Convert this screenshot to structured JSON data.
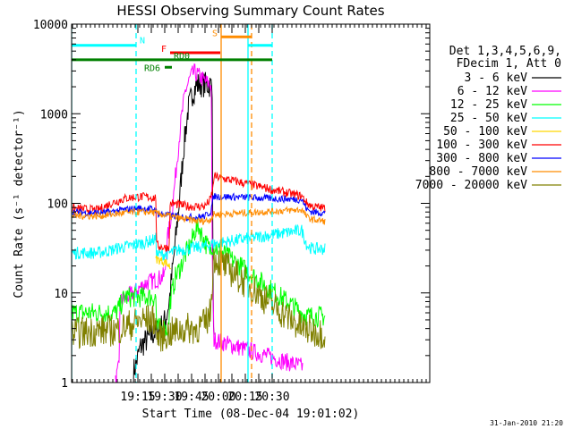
{
  "chart_data": {
    "type": "line",
    "title": "HESSI Observing Summary Count Rates",
    "xlabel": "Start Time (08-Dec-04 19:01:02)",
    "ylabel": "Count Rate (s⁻¹ detector⁻¹)",
    "ylog": true,
    "xlim": [
      1081,
      1481
    ],
    "ylim": [
      1,
      10000
    ],
    "x_ticks": [
      {
        "t": 1155,
        "label": "19:15"
      },
      {
        "t": 1170,
        "label": ""
      },
      {
        "t": 1185,
        "label": "19:30"
      },
      {
        "t": 1200,
        "label": ""
      },
      {
        "t": 1215,
        "label": "19:45"
      },
      {
        "t": 1230,
        "label": ""
      },
      {
        "t": 1245,
        "label": "20:00"
      },
      {
        "t": 1260,
        "label": ""
      },
      {
        "t": 1275,
        "label": "20:15"
      },
      {
        "t": 1290,
        "label": ""
      },
      {
        "t": 1305,
        "label": "20:30"
      }
    ],
    "y_ticks": [
      "1",
      "10",
      "100",
      "1000",
      "10000"
    ],
    "legend": {
      "placement": "right",
      "header": [
        "Det 1,3,4,5,6,9,",
        "FDecim 1, Att 0"
      ],
      "entries": [
        {
          "label": "3 - 6 keV",
          "color": "#000000"
        },
        {
          "label": "6 - 12 keV",
          "color": "#ff00ff"
        },
        {
          "label": "12 - 25 keV",
          "color": "#00ff00"
        },
        {
          "label": "25 - 50 keV",
          "color": "#00ffff"
        },
        {
          "label": "50 - 100 keV",
          "color": "#ffd700"
        },
        {
          "label": "100 - 300 keV",
          "color": "#ff0000"
        },
        {
          "label": "300 - 800 keV",
          "color": "#0000ff"
        },
        {
          "label": "800 - 7000 keV",
          "color": "#ff8c00"
        },
        {
          "label": "7000 - 20000 keV",
          "color": "#808000"
        }
      ]
    },
    "flags": [
      {
        "label": "N",
        "color": "#00ffff",
        "y": 5800,
        "segments": [
          [
            1081,
            1153
          ],
          [
            1278,
            1305
          ]
        ]
      },
      {
        "label": "S",
        "color": "#ff8c00",
        "y": 7200,
        "segments": [
          [
            1248,
            1282
          ]
        ]
      },
      {
        "label": "F",
        "color": "#ff0000",
        "y": 4800,
        "segments": [
          [
            1191,
            1247
          ]
        ]
      },
      {
        "label": "RD0",
        "color": "#008000",
        "y": 4000,
        "segments": [
          [
            1081,
            1305
          ]
        ]
      },
      {
        "label": "RD6",
        "color": "#008000",
        "y": 3300,
        "segments": [
          [
            1185,
            1193
          ]
        ]
      }
    ],
    "markers": [
      {
        "t": 1081,
        "color": "#00ffff",
        "style": "solid"
      },
      {
        "t": 1153,
        "color": "#00ffff",
        "style": "dashed"
      },
      {
        "t": 1248,
        "color": "#ff8c00",
        "style": "solid"
      },
      {
        "t": 1278,
        "color": "#00ffff",
        "style": "solid"
      },
      {
        "t": 1282,
        "color": "#ff8c00",
        "style": "dashed"
      },
      {
        "t": 1305,
        "color": "#00ffff",
        "style": "dashed"
      }
    ],
    "series": [
      {
        "name": "3 - 6 keV",
        "color": "#000000",
        "noise": 0.15,
        "points": [
          [
            1150,
            1.3
          ],
          [
            1152,
            1.5
          ],
          [
            1158,
            2.5
          ],
          [
            1165,
            3
          ],
          [
            1172,
            3.5
          ],
          [
            1180,
            4
          ],
          [
            1186,
            5
          ],
          [
            1190,
            8
          ],
          [
            1196,
            30
          ],
          [
            1201,
            100
          ],
          [
            1206,
            400
          ],
          [
            1211,
            1100
          ],
          [
            1216,
            1700
          ],
          [
            1221,
            2100
          ],
          [
            1226,
            2150
          ],
          [
            1231,
            2100
          ],
          [
            1235,
            2100
          ],
          [
            1238,
            2050
          ],
          [
            1239,
            10
          ],
          [
            1240,
            3
          ]
        ]
      },
      {
        "name": "6 - 12 keV",
        "color": "#ff00ff",
        "noise": 0.1,
        "points": [
          [
            1130,
            1
          ],
          [
            1134,
            1.5
          ],
          [
            1135,
            8
          ],
          [
            1150,
            10
          ],
          [
            1160,
            12
          ],
          [
            1165,
            13
          ],
          [
            1175,
            14
          ],
          [
            1182,
            15
          ],
          [
            1185,
            16
          ],
          [
            1188,
            40
          ],
          [
            1193,
            80
          ],
          [
            1197,
            200
          ],
          [
            1203,
            800
          ],
          [
            1208,
            1800
          ],
          [
            1214,
            2600
          ],
          [
            1218,
            2900
          ],
          [
            1224,
            2600
          ],
          [
            1230,
            2300
          ],
          [
            1236,
            2100
          ],
          [
            1237,
            1900
          ],
          [
            1238,
            30
          ],
          [
            1239,
            8
          ],
          [
            1240,
            3
          ],
          [
            1339,
            1.5
          ]
        ]
      },
      {
        "name": "12 - 25 keV",
        "color": "#00ff00",
        "noise": 0.12,
        "points": [
          [
            1081,
            6
          ],
          [
            1110,
            6
          ],
          [
            1130,
            6
          ],
          [
            1135,
            7
          ],
          [
            1140,
            9
          ],
          [
            1150,
            9
          ],
          [
            1160,
            9
          ],
          [
            1170,
            9
          ],
          [
            1175,
            9
          ],
          [
            1176,
            4
          ],
          [
            1189,
            4
          ],
          [
            1191,
            8
          ],
          [
            1197,
            15
          ],
          [
            1203,
            20
          ],
          [
            1209,
            28
          ],
          [
            1214,
            35
          ],
          [
            1219,
            50
          ],
          [
            1223,
            55
          ],
          [
            1228,
            40
          ],
          [
            1233,
            33
          ],
          [
            1236,
            30
          ],
          [
            1237,
            35
          ],
          [
            1338,
            6
          ],
          [
            1345,
            5.5
          ],
          [
            1364,
            5.5
          ]
        ]
      },
      {
        "name": "25 - 50 keV",
        "color": "#00ffff",
        "noise": 0.07,
        "points": [
          [
            1081,
            28
          ],
          [
            1110,
            28
          ],
          [
            1125,
            30
          ],
          [
            1135,
            32
          ],
          [
            1150,
            34
          ],
          [
            1165,
            37
          ],
          [
            1175,
            40
          ],
          [
            1176,
            27
          ],
          [
            1185,
            27
          ],
          [
            1191,
            28
          ],
          [
            1200,
            30
          ],
          [
            1210,
            31
          ],
          [
            1220,
            32
          ],
          [
            1230,
            33
          ],
          [
            1236,
            35
          ],
          [
            1338,
            50
          ],
          [
            1344,
            34
          ],
          [
            1350,
            31
          ],
          [
            1364,
            31
          ]
        ]
      },
      {
        "name": "50 - 100 keV",
        "color": "#ffd700",
        "noise": 0.05,
        "points": [
          [
            1175,
            24
          ],
          [
            1186,
            22
          ],
          [
            1192,
            19
          ]
        ]
      },
      {
        "name": "100 - 300 keV",
        "color": "#ff0000",
        "noise": 0.05,
        "points": [
          [
            1081,
            88
          ],
          [
            1110,
            84
          ],
          [
            1125,
            100
          ],
          [
            1140,
            113
          ],
          [
            1153,
            118
          ],
          [
            1164,
            118
          ],
          [
            1175,
            115
          ],
          [
            1176,
            34
          ],
          [
            1185,
            32
          ],
          [
            1190,
            33
          ],
          [
            1191,
            100
          ],
          [
            1200,
            97
          ],
          [
            1210,
            93
          ],
          [
            1220,
            92
          ],
          [
            1230,
            93
          ],
          [
            1236,
            110
          ],
          [
            1239,
            150
          ],
          [
            1240,
            200
          ],
          [
            1338,
            120
          ],
          [
            1344,
            100
          ],
          [
            1350,
            92
          ],
          [
            1364,
            88
          ]
        ]
      },
      {
        "name": "300 - 800 keV",
        "color": "#0000ff",
        "noise": 0.04,
        "points": [
          [
            1081,
            80
          ],
          [
            1110,
            78
          ],
          [
            1125,
            80
          ],
          [
            1140,
            85
          ],
          [
            1155,
            88
          ],
          [
            1168,
            87
          ],
          [
            1175,
            85
          ],
          [
            1176,
            77
          ],
          [
            1185,
            75
          ],
          [
            1191,
            73
          ],
          [
            1200,
            71
          ],
          [
            1210,
            70
          ],
          [
            1220,
            70
          ],
          [
            1230,
            72
          ],
          [
            1236,
            80
          ],
          [
            1240,
            120
          ],
          [
            1338,
            110
          ],
          [
            1344,
            85
          ],
          [
            1350,
            80
          ],
          [
            1364,
            78
          ]
        ]
      },
      {
        "name": "800 - 7000 keV",
        "color": "#ff8c00",
        "noise": 0.04,
        "points": [
          [
            1081,
            73
          ],
          [
            1110,
            72
          ],
          [
            1125,
            75
          ],
          [
            1140,
            78
          ],
          [
            1155,
            80
          ],
          [
            1170,
            80
          ],
          [
            1176,
            77
          ],
          [
            1186,
            74
          ],
          [
            1195,
            70
          ],
          [
            1205,
            67
          ],
          [
            1215,
            65
          ],
          [
            1225,
            63
          ],
          [
            1235,
            65
          ],
          [
            1240,
            75
          ],
          [
            1338,
            85
          ],
          [
            1344,
            70
          ],
          [
            1350,
            66
          ],
          [
            1364,
            63
          ]
        ]
      },
      {
        "name": "7000 - 20000 keV",
        "color": "#808000",
        "noise": 0.18,
        "points": [
          [
            1081,
            3.5
          ],
          [
            1110,
            3.8
          ],
          [
            1130,
            3.8
          ],
          [
            1140,
            4.2
          ],
          [
            1150,
            4.5
          ],
          [
            1160,
            5
          ],
          [
            1175,
            5
          ],
          [
            1176,
            3.2
          ],
          [
            1190,
            3.5
          ],
          [
            1200,
            3.8
          ],
          [
            1210,
            4
          ],
          [
            1220,
            4
          ],
          [
            1230,
            4.5
          ],
          [
            1236,
            6
          ],
          [
            1239,
            20
          ],
          [
            1240,
            25
          ],
          [
            1338,
            4
          ],
          [
            1364,
            3.5
          ]
        ]
      }
    ]
  },
  "footer_date": "31-Jan-2010 21:20"
}
